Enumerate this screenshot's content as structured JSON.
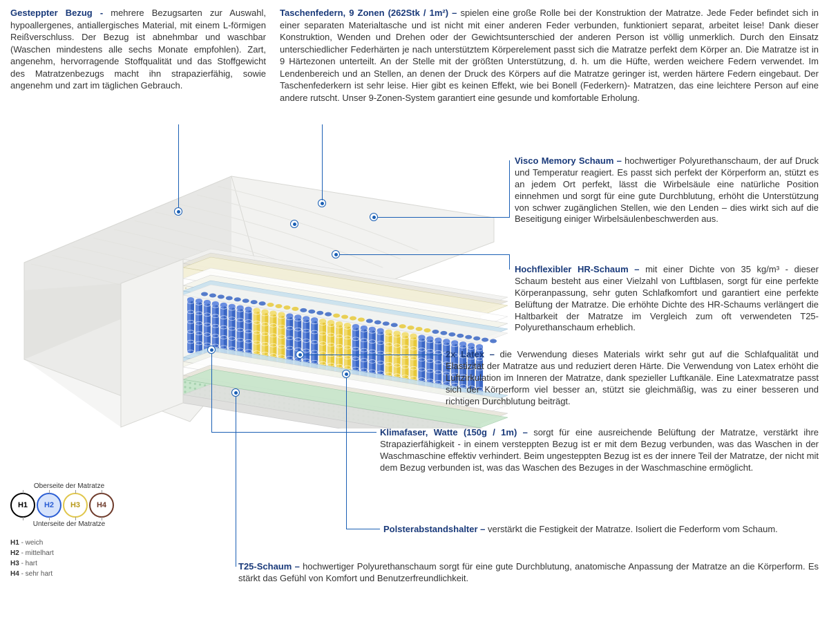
{
  "top": {
    "bezug": {
      "title": "Gesteppter Bezug - ",
      "text": "mehrere Bezugsarten zur Auswahl, hypoallergenes, antiallergisches Material, mit einem L-förmigen Reißverschluss. Der Bezug ist abnehmbar und waschbar (Waschen mindestens alle sechs Monate empfohlen). Zart, angenehm, hervorragende Stoffqualität und das Stoffgewicht des Matratzenbezugs macht ihn strapazierfähig, sowie angenehm und zart im täglichen Gebrauch."
    },
    "federn": {
      "title": "Taschenfedern, 9 Zonen (262Stk / 1m²) – ",
      "text": "spielen eine große Rolle bei der Konstruktion der Matratze. Jede Feder befindet sich in einer separaten Materialtasche und ist nicht mit einer anderen Feder verbunden, funktioniert separat, arbeitet leise! Dank dieser Konstruktion, Wenden und Drehen oder der Gewichtsunterschied der anderen Person ist völlig unmerklich. Durch den Einsatz unterschiedlicher Federhärten je nach unterstütztem Körperelement passt sich die Matratze perfekt dem Körper an. Die Matratze ist in 9 Härtezonen unterteilt. An der Stelle mit der größten Unterstützung, d. h. um die Hüfte, werden weichere Federn verwendet. Im Lendenbereich und an Stellen, an denen der Druck des Körpers auf die Matratze geringer ist, werden härtere Federn eingebaut. Der Taschenfederkern ist sehr leise. Hier gibt es keinen Effekt, wie bei Bonell (Federkern)- Matratzen, das eine leichtere Person auf eine andere rutscht. Unser 9-Zonen-System garantiert eine gesunde und komfortable Erholung."
    }
  },
  "callouts": {
    "visco": {
      "title": "Visco Memory Schaum – ",
      "text": "hochwertiger Polyurethanschaum, der auf Druck und Temperatur reagiert. Es passt sich perfekt der Körperform an, stützt es an jedem Ort perfekt, lässt die Wirbelsäule eine natürliche Position einnehmen und sorgt für eine gute Durchblutung, erhöht die Unterstützung von schwer zugänglichen Stellen, wie den Lenden – dies wirkt sich auf die Beseitigung einiger Wirbelsäulenbeschwerden aus."
    },
    "hr": {
      "title": "Hochflexibler HR-Schaum – ",
      "text": "mit einer Dichte von 35 kg/m³ - dieser Schaum besteht aus einer Vielzahl von Luftblasen, sorgt für eine perfekte Körperanpassung, sehr guten Schlafkomfort und garantiert eine perfekte Belüftung der Matratze. Die erhöhte Dichte des HR-Schaums verlängert die Haltbarkeit der Matratze im Vergleich zum oft verwendeten T25-Polyurethanschaum erheblich."
    },
    "latex": {
      "title": "2x Latex – ",
      "text": "die Verwendung dieses Materials wirkt sehr gut auf die Schlafqualität und Elastizität der Matratze aus und reduziert deren Härte. Die Verwendung von Latex erhöht die Luftzirkulation im Inneren der Matratze, dank spezieller Luftkanäle. Eine Latexmatratze passt sich der Körperform viel besser an, stützt sie gleichmäßig, was zu einer besseren und richtigen Durchblutung beiträgt."
    },
    "klima": {
      "title": "Klimafaser, Watte (150g / 1m) – ",
      "text": "sorgt für eine ausreichende Belüftung der Matratze, verstärkt ihre Strapazierfähigkeit - in einem versteppten Bezug ist er mit dem Bezug verbunden, was das Waschen in der Waschmaschine effektiv verhindert. Beim ungesteppten Bezug ist es der innere Teil der Matratze, der nicht mit dem Bezug verbunden ist, was das Waschen des Bezuges in der Waschmaschine ermöglicht."
    },
    "polster": {
      "title": "Polsterabstandshalter – ",
      "text": "verstärkt die Festigkeit der Matratze. Isoliert die Federform vom Schaum."
    },
    "t25": {
      "title": "T25-Schaum – ",
      "text": "hochwertiger Polyurethanschaum sorgt für eine gute Durchblutung, anatomische Anpassung der Matratze an die Körperform. Es stärkt das Gefühl von Komfort und Benutzerfreundlichkeit."
    }
  },
  "hardness": {
    "top_label": "Oberseite der Matratze",
    "bottom_label": "Unterseite der Matratze",
    "circles": [
      {
        "label": "H1",
        "border": "#000000",
        "fill": "#ffffff",
        "text": "#000000"
      },
      {
        "label": "H2",
        "border": "#2a5dd4",
        "fill": "#d6e3fb",
        "text": "#2a5dd4"
      },
      {
        "label": "H3",
        "border": "#e0c64a",
        "fill": "#ffffff",
        "text": "#b89a1a"
      },
      {
        "label": "H4",
        "border": "#6e3a2a",
        "fill": "#ffffff",
        "text": "#6e3a2a"
      }
    ],
    "legend": [
      {
        "k": "H1",
        "v": "- weich"
      },
      {
        "k": "H2",
        "v": "- mittelhart"
      },
      {
        "k": "H3",
        "v": "- hart"
      },
      {
        "k": "H4",
        "v": "- sehr hart"
      }
    ]
  },
  "diagram": {
    "colors": {
      "cover": "#f2f2f0",
      "cover_shadow": "#d8d8d4",
      "visco": "#f4f0d8",
      "hr_foam": "#ffffff",
      "latex": "#f5f5ec",
      "spacer": "#c9e2ef",
      "spring_blue": "#3a66c4",
      "spring_blue_light": "#6a8ee0",
      "spring_yellow": "#e8c93a",
      "spring_yellow_light": "#f2df7a",
      "klima": "#e8e5da",
      "green_latex": "#c8e6cc",
      "base": "#e0e0de",
      "line": "#1a5fb4"
    },
    "spring_zones": [
      "blue",
      "blue",
      "yellow",
      "blue",
      "yellow",
      "blue",
      "yellow",
      "blue",
      "blue"
    ]
  }
}
